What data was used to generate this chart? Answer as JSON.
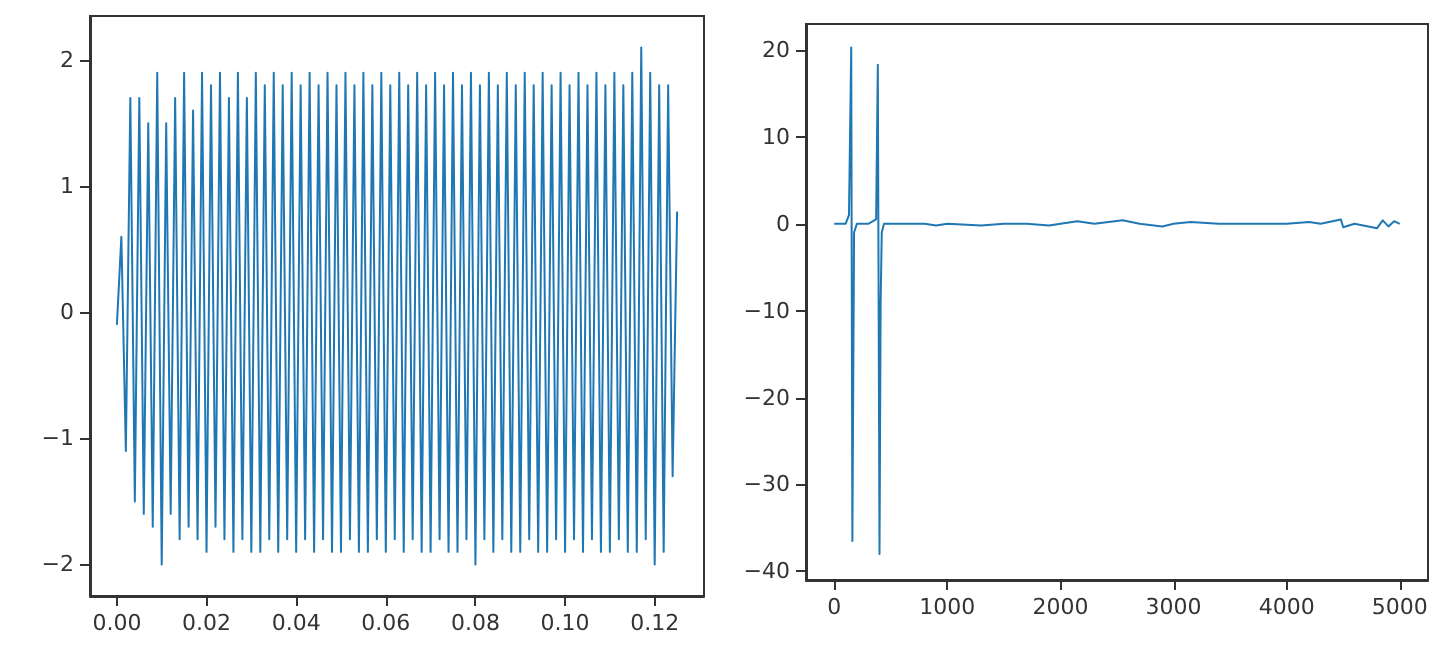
{
  "chart_data": [
    {
      "type": "line",
      "x": [
        0,
        0.001,
        0.002,
        0.003,
        0.004,
        0.005,
        0.006,
        0.007,
        0.008,
        0.009,
        0.01,
        0.011,
        0.012,
        0.013,
        0.014,
        0.015,
        0.016,
        0.017,
        0.018,
        0.019,
        0.02,
        0.021,
        0.022,
        0.023,
        0.024,
        0.025,
        0.026,
        0.027,
        0.028,
        0.029,
        0.03,
        0.031,
        0.032,
        0.033,
        0.034,
        0.035,
        0.036,
        0.037,
        0.038,
        0.039,
        0.04,
        0.041,
        0.042,
        0.043,
        0.044,
        0.045,
        0.046,
        0.047,
        0.048,
        0.049,
        0.05,
        0.051,
        0.052,
        0.053,
        0.054,
        0.055,
        0.056,
        0.057,
        0.058,
        0.059,
        0.06,
        0.061,
        0.062,
        0.063,
        0.064,
        0.065,
        0.066,
        0.067,
        0.068,
        0.069,
        0.07,
        0.071,
        0.072,
        0.073,
        0.074,
        0.075,
        0.076,
        0.077,
        0.078,
        0.079,
        0.08,
        0.081,
        0.082,
        0.083,
        0.084,
        0.085,
        0.086,
        0.087,
        0.088,
        0.089,
        0.09,
        0.091,
        0.092,
        0.093,
        0.094,
        0.095,
        0.096,
        0.097,
        0.098,
        0.099,
        0.1,
        0.101,
        0.102,
        0.103,
        0.104,
        0.105,
        0.106,
        0.107,
        0.108,
        0.109,
        0.11,
        0.111,
        0.112,
        0.113,
        0.114,
        0.115,
        0.116,
        0.117,
        0.118,
        0.119,
        0.12,
        0.121,
        0.122,
        0.123,
        0.124,
        0.125
      ],
      "series": [
        {
          "color": "#1f77b4",
          "values": [
            -0.1,
            0.6,
            -1.1,
            1.7,
            -1.5,
            1.7,
            -1.6,
            1.5,
            -1.7,
            1.9,
            -2.0,
            1.5,
            -1.6,
            1.7,
            -1.8,
            1.9,
            -1.7,
            1.6,
            -1.8,
            1.9,
            -1.9,
            1.8,
            -1.7,
            1.9,
            -1.8,
            1.7,
            -1.9,
            1.9,
            -1.8,
            1.7,
            -1.9,
            1.9,
            -1.9,
            1.8,
            -1.8,
            1.9,
            -1.9,
            1.8,
            -1.8,
            1.9,
            -1.9,
            1.8,
            -1.8,
            1.9,
            -1.9,
            1.8,
            -1.8,
            1.9,
            -1.9,
            1.8,
            -1.9,
            1.9,
            -1.8,
            1.8,
            -1.9,
            1.9,
            -1.9,
            1.8,
            -1.8,
            1.9,
            -1.9,
            1.8,
            -1.8,
            1.9,
            -1.9,
            1.8,
            -1.8,
            1.9,
            -1.9,
            1.8,
            -1.9,
            1.9,
            -1.8,
            1.8,
            -1.9,
            1.9,
            -1.9,
            1.8,
            -1.8,
            1.9,
            -2.0,
            1.8,
            -1.8,
            1.9,
            -1.9,
            1.8,
            -1.8,
            1.9,
            -1.9,
            1.8,
            -1.9,
            1.9,
            -1.8,
            1.8,
            -1.9,
            1.9,
            -1.9,
            1.8,
            -1.8,
            1.9,
            -1.9,
            1.8,
            -1.8,
            1.9,
            -1.9,
            1.8,
            -1.8,
            1.9,
            -1.9,
            1.8,
            -1.9,
            1.9,
            -1.8,
            1.8,
            -1.9,
            1.9,
            -1.9,
            2.1,
            -1.8,
            1.9,
            -2.0,
            1.8,
            -1.9,
            1.8,
            -1.3,
            0.8
          ]
        }
      ],
      "xlim": [
        -0.006,
        0.131
      ],
      "ylim": [
        -2.25,
        2.35
      ],
      "xticks": [
        {
          "value": 0,
          "label": "0.00"
        },
        {
          "value": 0.02,
          "label": "0.02"
        },
        {
          "value": 0.04,
          "label": "0.04"
        },
        {
          "value": 0.06,
          "label": "0.06"
        },
        {
          "value": 0.08,
          "label": "0.08"
        },
        {
          "value": 0.1,
          "label": "0.10"
        },
        {
          "value": 0.12,
          "label": "0.12"
        }
      ],
      "yticks": [
        -2,
        -1,
        0,
        1,
        2
      ]
    },
    {
      "type": "line",
      "x": [
        0,
        100,
        130,
        150,
        160,
        175,
        200,
        300,
        370,
        385,
        400,
        410,
        420,
        440,
        600,
        800,
        900,
        1000,
        1300,
        1500,
        1700,
        1900,
        2000,
        2150,
        2300,
        2550,
        2700,
        2900,
        3000,
        3150,
        3400,
        3700,
        4000,
        4200,
        4300,
        4480,
        4500,
        4600,
        4800,
        4850,
        4900,
        4950,
        5000
      ],
      "series": [
        {
          "color": "#1f77b4",
          "values": [
            0,
            0,
            1,
            20.3,
            -36.5,
            -1,
            0,
            0,
            0.5,
            18.3,
            -38,
            -9,
            -1,
            0,
            0,
            0,
            -0.2,
            0,
            -0.2,
            0,
            0,
            -0.2,
            0,
            0.3,
            0,
            0.4,
            0,
            -0.3,
            0,
            0.2,
            0,
            0,
            0,
            0.2,
            0,
            0.5,
            -0.4,
            0,
            -0.5,
            0.4,
            -0.3,
            0.3,
            0
          ]
        }
      ],
      "xlim": [
        -250,
        5250
      ],
      "ylim": [
        -41,
        23
      ],
      "xticks": [
        0,
        1000,
        2000,
        3000,
        4000,
        5000
      ],
      "yticks": [
        -40,
        -30,
        -20,
        -10,
        0,
        10,
        20
      ]
    }
  ]
}
